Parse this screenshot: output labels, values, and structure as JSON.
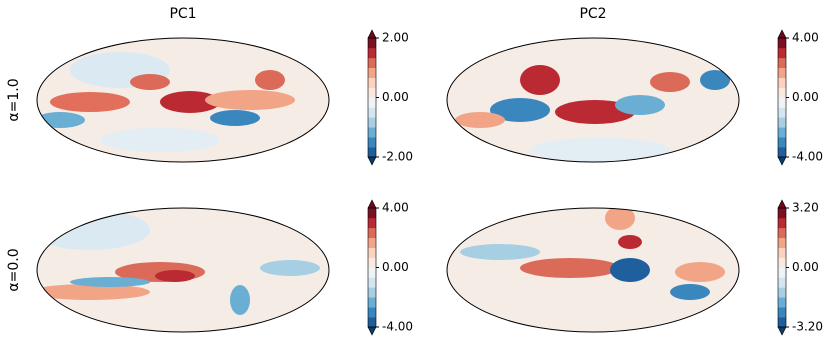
{
  "columns": [
    "PC1",
    "PC2"
  ],
  "rows": [
    "α=1.0",
    "α=0.0"
  ],
  "colormap": {
    "colors": [
      "#1f5f9e",
      "#3a87be",
      "#6aaed3",
      "#a7cfe4",
      "#d3e6f0",
      "#eef3f7",
      "#fbe9df",
      "#fad2bd",
      "#f2a586",
      "#db6b58",
      "#bb2a33",
      "#7d0f22"
    ],
    "under": "#0b3d6e",
    "over": "#6b0a1e"
  },
  "panels": [
    {
      "lim": [
        -2,
        2
      ],
      "ticks": [
        {
          "value": -2,
          "label": "-2.00"
        },
        {
          "value": 0,
          "label": "0.00"
        },
        {
          "value": 2,
          "label": "2.00"
        }
      ]
    },
    {
      "lim": [
        -4,
        4
      ],
      "ticks": [
        {
          "value": -4,
          "label": "-4.00"
        },
        {
          "value": 0,
          "label": "0.00"
        },
        {
          "value": 4,
          "label": "4.00"
        }
      ]
    },
    {
      "lim": [
        -4,
        4
      ],
      "ticks": [
        {
          "value": -4,
          "label": "-4.00"
        },
        {
          "value": 0,
          "label": "0.00"
        },
        {
          "value": 4,
          "label": "4.00"
        }
      ]
    },
    {
      "lim": [
        -3.2,
        3.2
      ],
      "ticks": [
        {
          "value": -3.2,
          "label": "-3.20"
        },
        {
          "value": 0,
          "label": "0.00"
        },
        {
          "value": 3.2,
          "label": "3.20"
        }
      ]
    }
  ]
}
